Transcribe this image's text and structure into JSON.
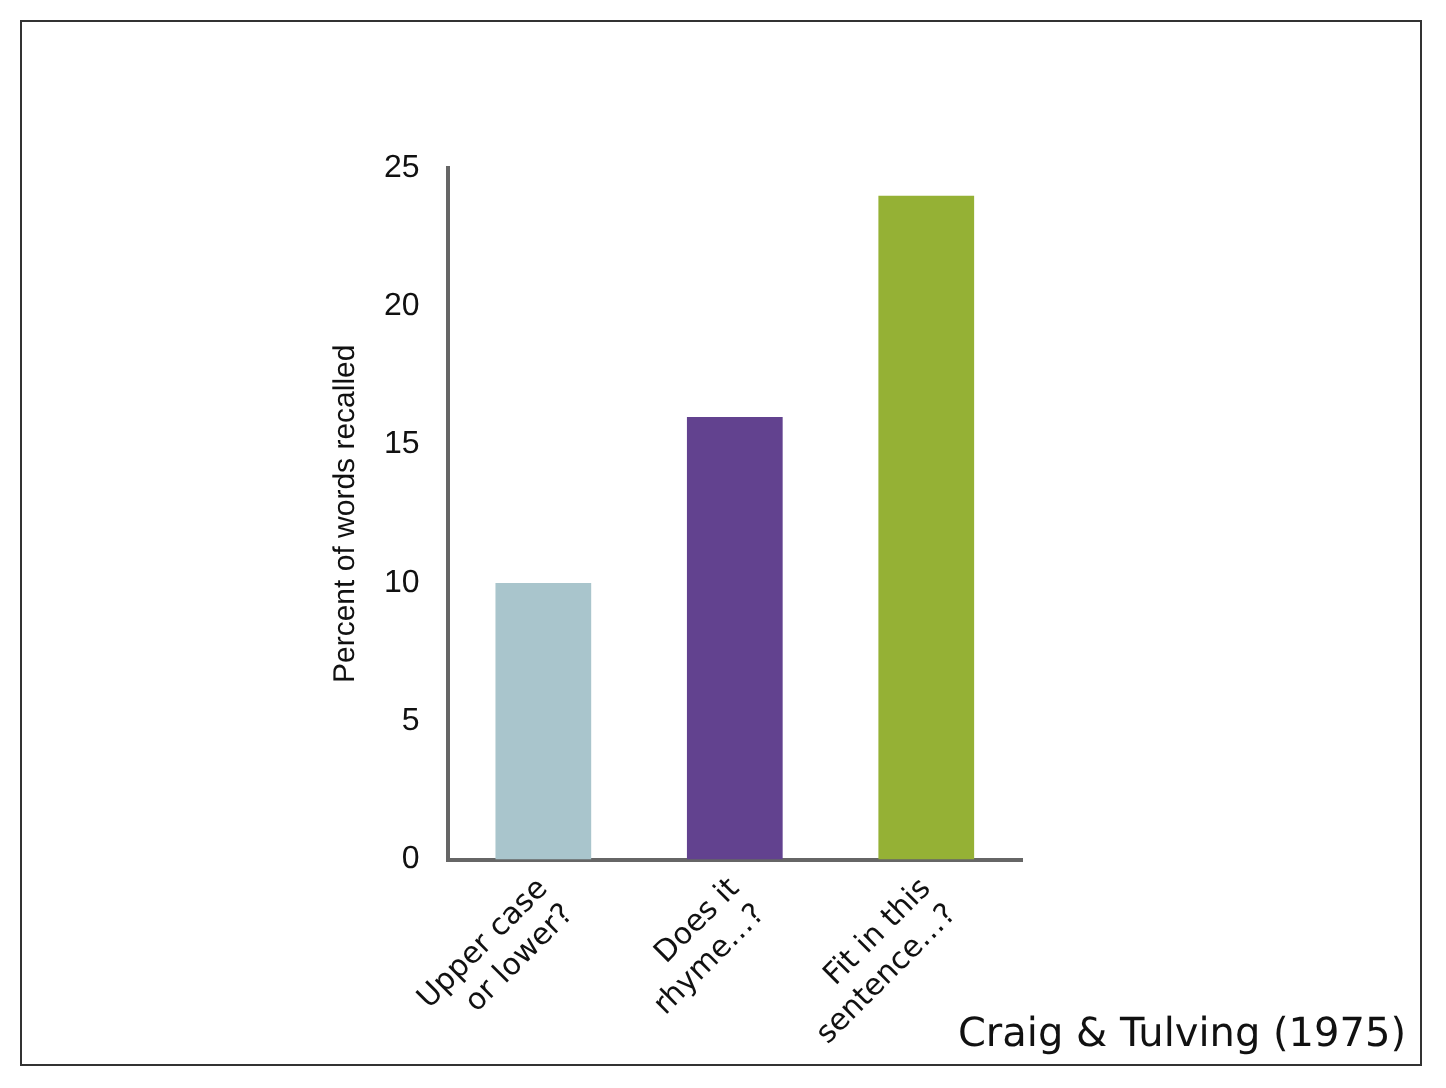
{
  "chart_data": {
    "type": "bar",
    "ylabel": "Percent of words recalled",
    "categories": [
      "Upper case or lower?",
      "Does it rhyme…?",
      "Fit in this sentence…?"
    ],
    "values": [
      10,
      16,
      24
    ],
    "colors": [
      "#a9c5cc",
      "#62428f",
      "#95b135"
    ],
    "ylim": [
      0,
      25
    ],
    "yticks": [
      0,
      5,
      10,
      15,
      20,
      25
    ],
    "grid": false,
    "legend": false,
    "annotations": [
      "Craig & Tulving (1975)"
    ]
  }
}
